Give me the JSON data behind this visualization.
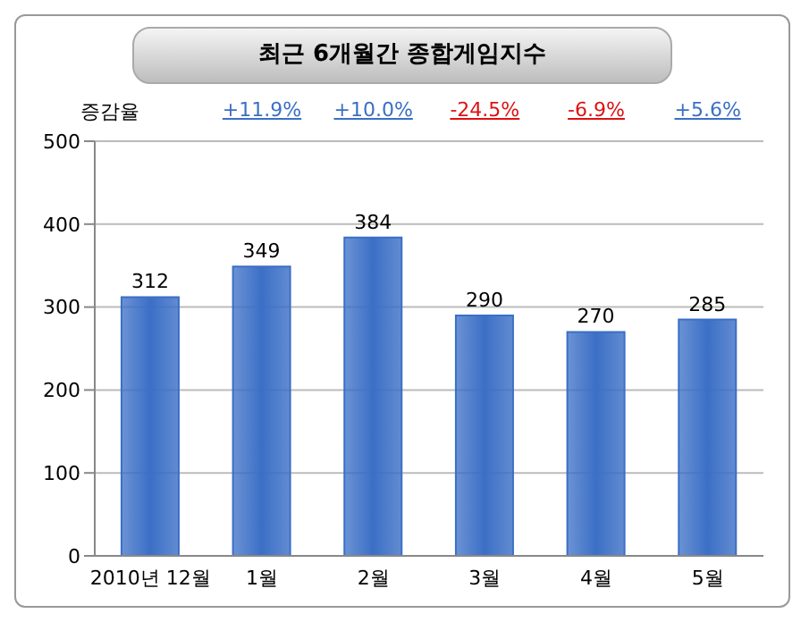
{
  "chart_data": {
    "type": "bar",
    "title": "최근 6개월간 종합게임지수",
    "categories": [
      "2010년 12월",
      "1월",
      "2월",
      "3월",
      "4월",
      "5월"
    ],
    "values": [
      312,
      349,
      384,
      290,
      270,
      285
    ],
    "color": "#3b6fc6",
    "ylim": [
      0,
      500
    ],
    "yticks": [
      0,
      100,
      200,
      300,
      400,
      500
    ],
    "grid": "y",
    "data_labels": true,
    "annotations": [
      "증감율",
      "+11.9%",
      "+10.0%",
      "-24.5%",
      "-6.9%",
      "+5.6%"
    ]
  }
}
